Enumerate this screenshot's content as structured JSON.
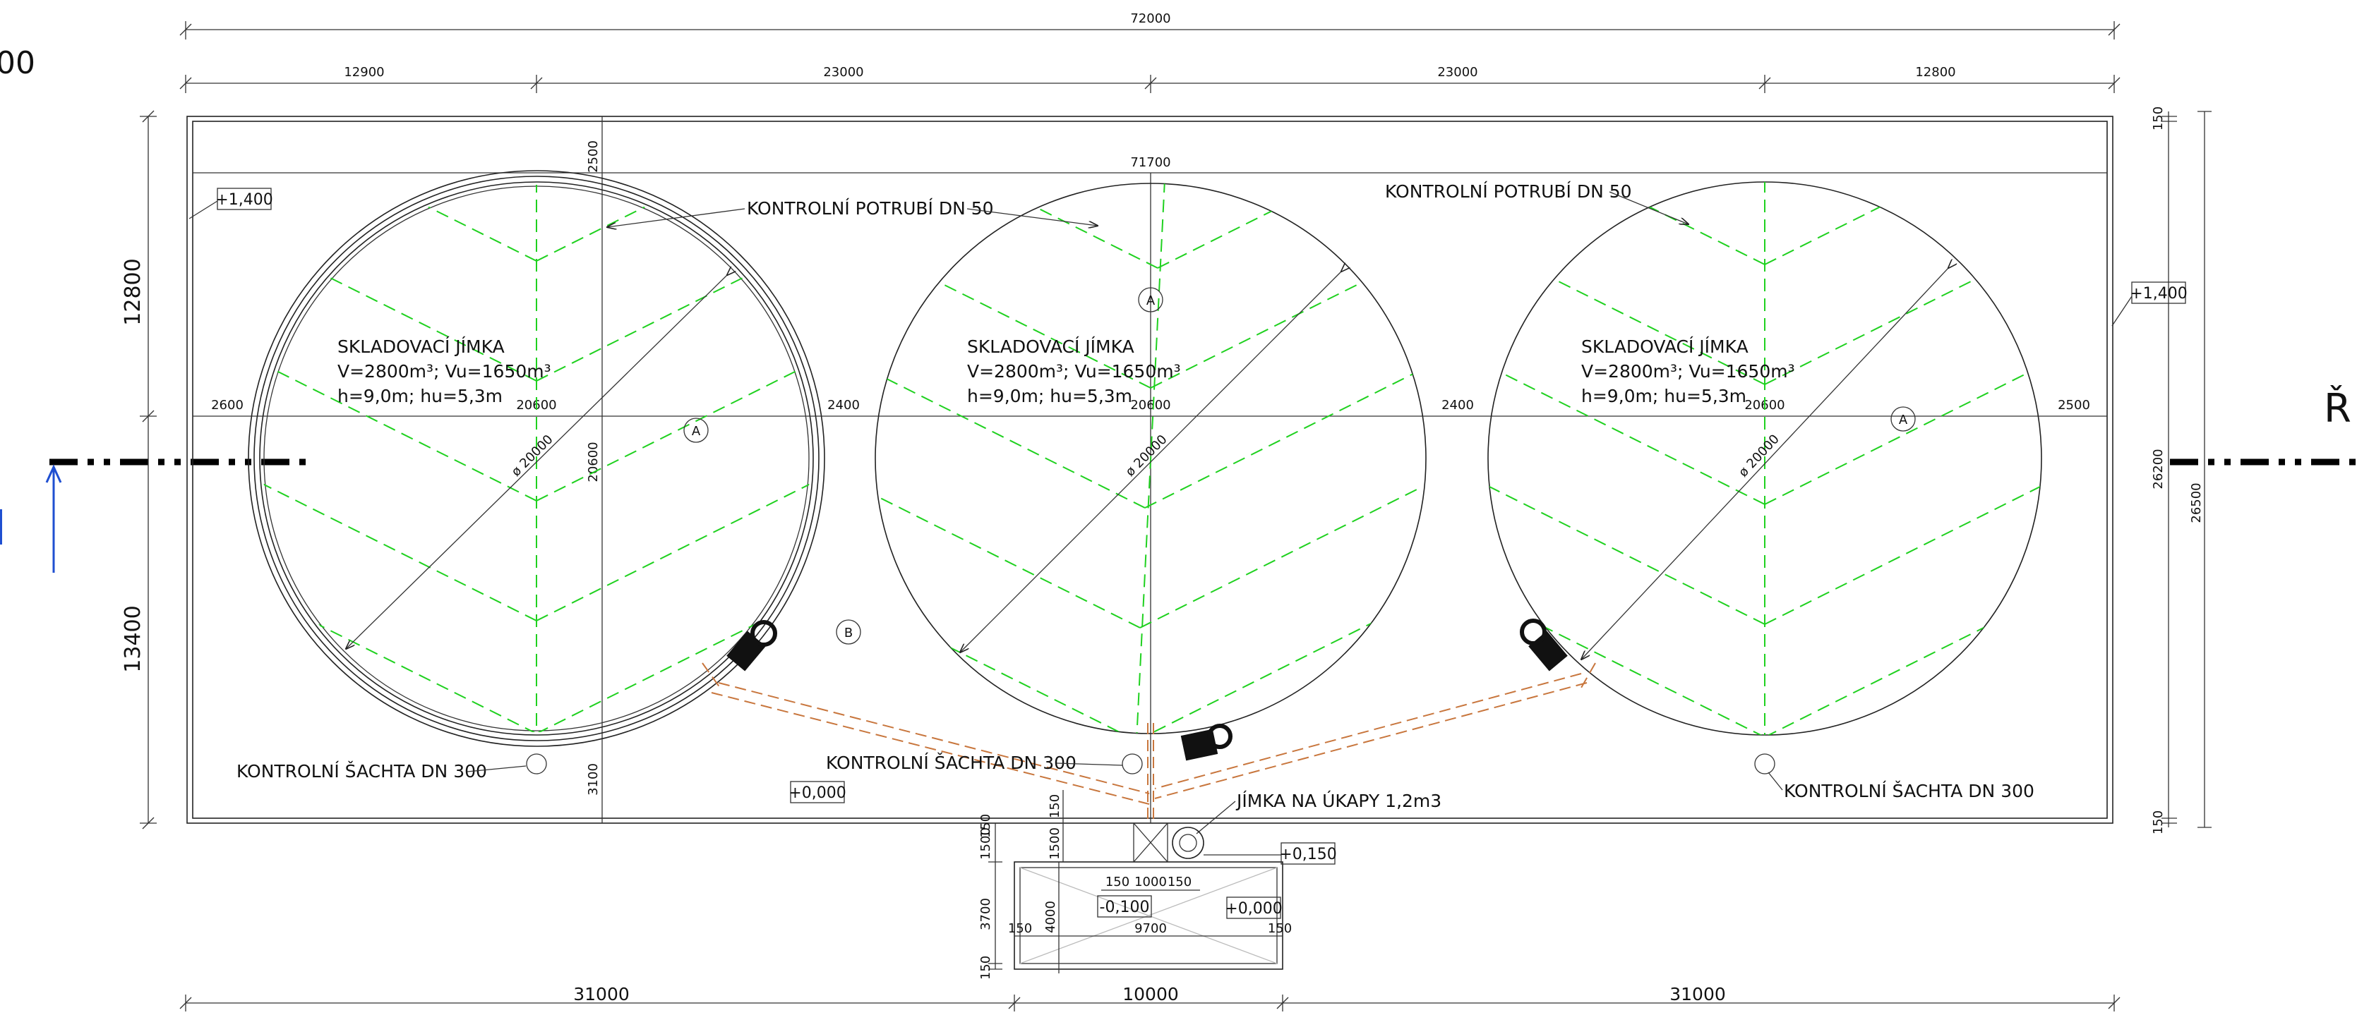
{
  "fragments": {
    "top_left": "00",
    "right": "Ř"
  },
  "dimensions": {
    "overall_top": "72000",
    "top_segments": [
      "12900",
      "23000",
      "23000",
      "12800"
    ],
    "inner_width": "71700",
    "wall_top": "2500",
    "left_upper": "12800",
    "left_lower": "13400",
    "row_left": "2600",
    "row_d1": "20600",
    "row_gap1": "2400",
    "row_d2": "20600",
    "row_gap2": "2400",
    "row_d3": "20600",
    "row_right": "2500",
    "tank1_vertical": "20600",
    "wall_bottom": "3100",
    "right_top": "150",
    "right_mid": "26200",
    "right_total": "26500",
    "right_bottom": "150",
    "diameter": "ø 20000",
    "bottom_segments": [
      "31000",
      "10000",
      "31000"
    ],
    "sump_left": [
      "150",
      "1500",
      "3700",
      "150"
    ],
    "sump_mid": "4000",
    "sump_top_pair": [
      "150",
      "1500"
    ],
    "sump_inner_top": [
      "150",
      "1000",
      "150"
    ],
    "sump_inner_width": "9700",
    "sump_inner_sides": [
      "150",
      "150"
    ]
  },
  "levels": {
    "left": "+1,400",
    "right": "+1,400",
    "middle": "+0,000",
    "sump_top": "+0,150",
    "sump_floor": "-0,100",
    "sump_right": "+0,000"
  },
  "tanks": [
    {
      "name": "SKLADOVACÍ JÍMKA",
      "volume": "V=2800m³; Vu=1650m³",
      "height": "h=9,0m; hu=5,3m",
      "axis_mark": "A"
    },
    {
      "name": "SKLADOVACÍ JÍMKA",
      "volume": "V=2800m³; Vu=1650m³",
      "height": "h=9,0m; hu=5,3m",
      "axis_mark": "A"
    },
    {
      "name": "SKLADOVACÍ JÍMKA",
      "volume": "V=2800m³; Vu=1650m³",
      "height": "h=9,0m; hu=5,3m",
      "axis_mark": "A"
    }
  ],
  "marks": {
    "b": "B"
  },
  "annotations": {
    "control_pipe_1": "KONTROLNÍ POTRUBÍ DN 50",
    "control_pipe_2": "KONTROLNÍ POTRUBÍ DN 50",
    "control_shaft_1": "KONTROLNÍ ŠACHTA DN 300",
    "control_shaft_2": "KONTROLNÍ ŠACHTA DN 300",
    "control_shaft_3": "KONTROLNÍ ŠACHTA DN 300",
    "drip_sump": "JÍMKA NA ÚKAPY 1,2m3"
  },
  "colors": {
    "hatch": "#1fd11f",
    "pipe": "#c8763d",
    "section_arrow": "#1f4fd1",
    "lines": "#222222"
  }
}
